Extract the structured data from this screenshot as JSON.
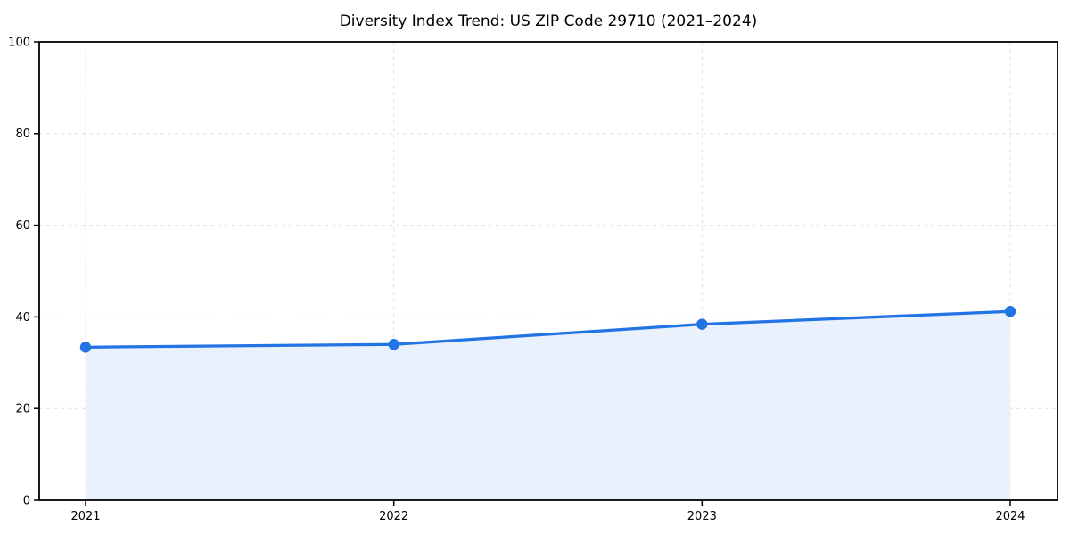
{
  "chart_data": {
    "type": "area",
    "title": "Diversity Index Trend: US ZIP Code 29710 (2021–2024)",
    "categories": [
      "2021",
      "2022",
      "2023",
      "2024"
    ],
    "series": [
      {
        "name": "Diversity Index",
        "values": [
          33.4,
          34.0,
          38.4,
          41.2
        ]
      }
    ],
    "xlabel": "",
    "ylabel": "",
    "ylim": [
      0,
      100
    ],
    "yticks": [
      0,
      20,
      40,
      60,
      80,
      100
    ],
    "grid": true,
    "grid_style": "dashed",
    "legend_position": "none",
    "colors": {
      "line": "#2273e3",
      "marker": "#2273e3",
      "fill": "#e9f1fc",
      "grid": "#e0e0e0",
      "spine": "#000000",
      "tick_text": "#000000",
      "background": "#ffffff"
    }
  }
}
